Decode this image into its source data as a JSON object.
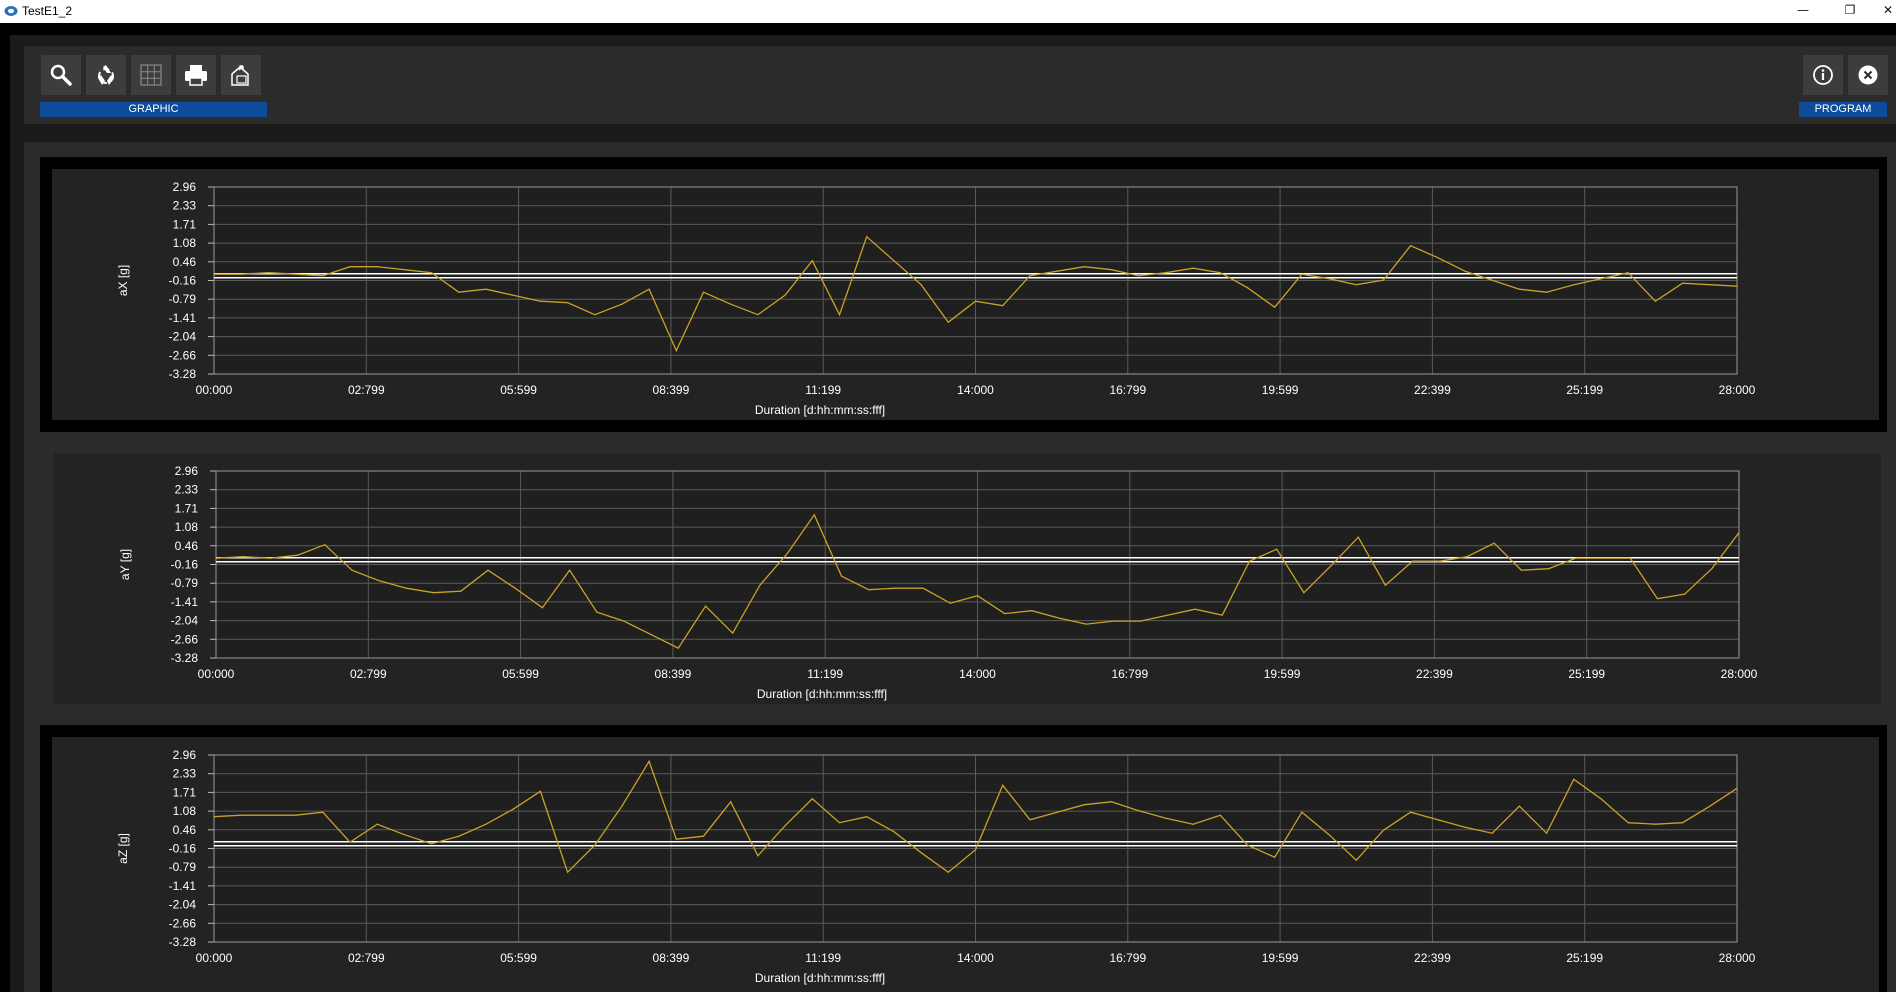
{
  "window": {
    "title": "TestE1_2",
    "minimize": "—",
    "restore": "❐",
    "close": "✕"
  },
  "toolbar": {
    "left_buttons": [
      {
        "icon": "search-icon",
        "name": "search-button"
      },
      {
        "icon": "recycle-icon",
        "name": "refresh-button"
      },
      {
        "icon": "grid-icon",
        "name": "grid-button"
      },
      {
        "icon": "printer-icon",
        "name": "print-button"
      },
      {
        "icon": "export-icon",
        "name": "export-button"
      }
    ],
    "left_label": "GRAPHIC",
    "right_buttons": [
      {
        "icon": "info-icon",
        "name": "info-button"
      },
      {
        "icon": "close-icon",
        "name": "close-button"
      }
    ],
    "right_label": "PROGRAM"
  },
  "colors": {
    "series": "#c9a227",
    "zero_line": "#ffffff",
    "grid": "#5a5a5a",
    "label_blue": "#0e4b9b"
  },
  "chart_data": [
    {
      "type": "line",
      "ylabel": "aX [g]",
      "xlabel": "Duration [d:hh:mm:ss:fff]",
      "y_ticks": [
        "2.96",
        "2.33",
        "1.71",
        "1.08",
        "0.46",
        "-0.16",
        "-0.79",
        "-1.41",
        "-2.04",
        "-2.66",
        "-3.28"
      ],
      "x_ticks": [
        "00:000",
        "02:799",
        "05:599",
        "08:399",
        "11:199",
        "14:000",
        "16:799",
        "19:599",
        "22:399",
        "25:199",
        "28:000"
      ],
      "xlim": [
        0,
        28
      ],
      "ylim": [
        -3.28,
        2.96
      ],
      "reference_line": 0,
      "x": [
        0,
        0.5,
        1,
        1.5,
        2,
        2.5,
        3,
        3.5,
        4,
        4.5,
        5,
        5.5,
        6,
        6.5,
        7,
        7.5,
        8,
        8.5,
        9,
        9.5,
        10,
        10.5,
        11,
        11.5,
        12,
        12.5,
        13,
        13.5,
        14,
        14.5,
        15,
        15.5,
        16,
        16.5,
        17,
        17.5,
        18,
        18.5,
        19,
        19.5,
        20,
        20.5,
        21,
        21.5,
        22,
        22.5,
        23,
        23.5,
        24,
        24.5,
        25,
        25.5,
        26,
        26.5,
        27,
        27.5,
        28
      ],
      "values": [
        0.05,
        0.05,
        0.1,
        0.05,
        0.0,
        0.3,
        0.3,
        0.2,
        0.1,
        -0.55,
        -0.45,
        -0.65,
        -0.85,
        -0.9,
        -1.3,
        -0.95,
        -0.45,
        -2.5,
        -0.55,
        -0.95,
        -1.3,
        -0.65,
        0.5,
        -1.3,
        1.3,
        0.5,
        -0.3,
        -1.55,
        -0.85,
        -1.0,
        0.0,
        0.15,
        0.3,
        0.2,
        0.0,
        0.1,
        0.25,
        0.1,
        -0.4,
        -1.05,
        0.05,
        -0.1,
        -0.3,
        -0.15,
        1.0,
        0.6,
        0.15,
        -0.15,
        -0.45,
        -0.55,
        -0.3,
        -0.1,
        0.1,
        -0.85,
        -0.25,
        -0.3,
        -0.35
      ]
    },
    {
      "type": "line",
      "ylabel": "aY [g]",
      "xlabel": "Duration [d:hh:mm:ss:fff]",
      "y_ticks": [
        "2.96",
        "2.33",
        "1.71",
        "1.08",
        "0.46",
        "-0.16",
        "-0.79",
        "-1.41",
        "-2.04",
        "-2.66",
        "-3.28"
      ],
      "x_ticks": [
        "00:000",
        "02:799",
        "05:599",
        "08:399",
        "11:199",
        "14:000",
        "16:799",
        "19:599",
        "22:399",
        "25:199",
        "28:000"
      ],
      "xlim": [
        0,
        28
      ],
      "ylim": [
        -3.28,
        2.96
      ],
      "reference_line": 0,
      "x": [
        0,
        0.5,
        1,
        1.5,
        2,
        2.5,
        3,
        3.5,
        4,
        4.5,
        5,
        5.5,
        6,
        6.5,
        7,
        7.5,
        8,
        8.5,
        9,
        9.5,
        10,
        10.5,
        11,
        11.5,
        12,
        12.5,
        13,
        13.5,
        14,
        14.5,
        15,
        15.5,
        16,
        16.5,
        17,
        17.5,
        18,
        18.5,
        19,
        19.5,
        20,
        20.5,
        21,
        21.5,
        22,
        22.5,
        23,
        23.5,
        24,
        24.5,
        25,
        25.5,
        26,
        26.5,
        27,
        27.5,
        28
      ],
      "values": [
        0.05,
        0.1,
        0.05,
        0.15,
        0.5,
        -0.35,
        -0.7,
        -0.95,
        -1.1,
        -1.05,
        -0.35,
        -0.95,
        -1.6,
        -0.35,
        -1.75,
        -2.05,
        -2.5,
        -2.95,
        -1.55,
        -2.45,
        -0.85,
        0.2,
        1.5,
        -0.55,
        -1.0,
        -0.95,
        -0.95,
        -1.45,
        -1.2,
        -1.8,
        -1.7,
        -1.95,
        -2.15,
        -2.05,
        -2.05,
        -1.85,
        -1.65,
        -1.85,
        -0.05,
        0.35,
        -1.1,
        -0.2,
        0.75,
        -0.85,
        -0.05,
        -0.05,
        0.1,
        0.55,
        -0.35,
        -0.3,
        0.05,
        0.05,
        0.05,
        -1.3,
        -1.15,
        -0.3,
        0.9
      ]
    },
    {
      "type": "line",
      "ylabel": "aZ [g]",
      "xlabel": "Duration [d:hh:mm:ss:fff]",
      "y_ticks": [
        "2.96",
        "2.33",
        "1.71",
        "1.08",
        "0.46",
        "-0.16",
        "-0.79",
        "-1.41",
        "-2.04",
        "-2.66",
        "-3.28"
      ],
      "x_ticks": [
        "00:000",
        "02:799",
        "05:599",
        "08:399",
        "11:199",
        "14:000",
        "16:799",
        "19:599",
        "22:399",
        "25:199",
        "28:000"
      ],
      "xlim": [
        0,
        28
      ],
      "ylim": [
        -3.28,
        2.96
      ],
      "reference_line": 0,
      "x": [
        0,
        0.5,
        1,
        1.5,
        2,
        2.5,
        3,
        3.5,
        4,
        4.5,
        5,
        5.5,
        6,
        6.5,
        7,
        7.5,
        8,
        8.5,
        9,
        9.5,
        10,
        10.5,
        11,
        11.5,
        12,
        12.5,
        13,
        13.5,
        14,
        14.5,
        15,
        15.5,
        16,
        16.5,
        17,
        17.5,
        18,
        18.5,
        19,
        19.5,
        20,
        20.5,
        21,
        21.5,
        22,
        22.5,
        23,
        23.5,
        24,
        24.5,
        25,
        25.5,
        26,
        26.5,
        27,
        27.5,
        28
      ],
      "values": [
        0.9,
        0.95,
        0.95,
        0.95,
        1.05,
        0.05,
        0.65,
        0.3,
        0.0,
        0.25,
        0.65,
        1.15,
        1.75,
        -0.95,
        -0.05,
        1.25,
        2.75,
        0.15,
        0.25,
        1.4,
        -0.4,
        0.6,
        1.5,
        0.7,
        0.9,
        0.4,
        -0.3,
        -0.95,
        -0.2,
        1.95,
        0.8,
        1.05,
        1.3,
        1.4,
        1.1,
        0.85,
        0.65,
        0.95,
        -0.05,
        -0.45,
        1.05,
        0.3,
        -0.55,
        0.45,
        1.05,
        0.8,
        0.55,
        0.35,
        1.25,
        0.35,
        2.15,
        1.5,
        0.7,
        0.65,
        0.7,
        1.25,
        1.85
      ]
    }
  ]
}
